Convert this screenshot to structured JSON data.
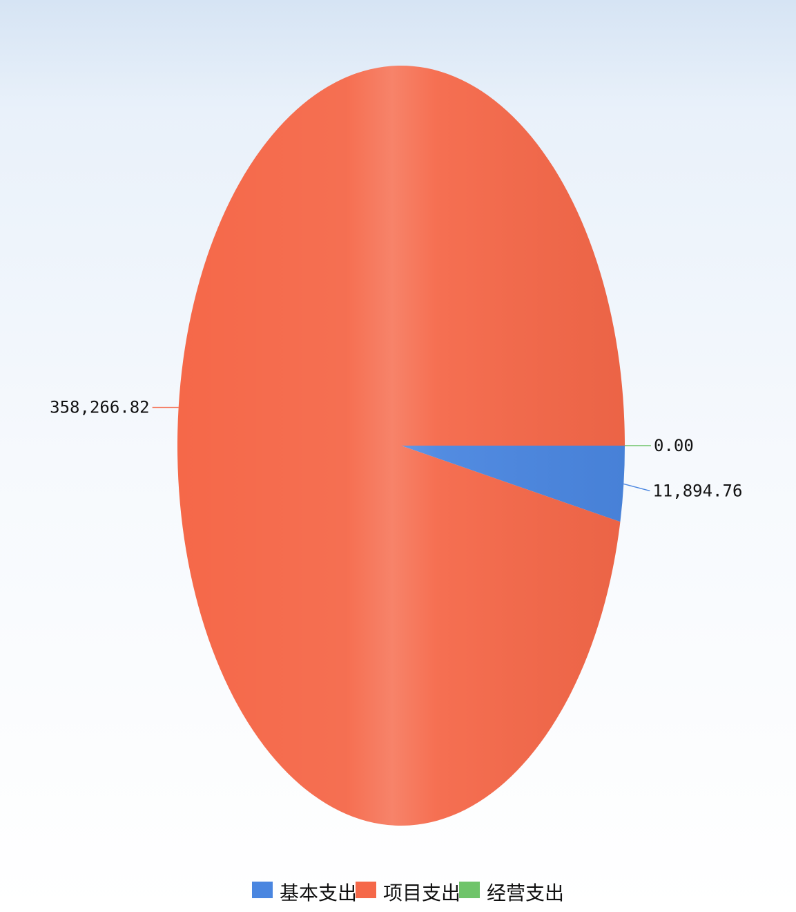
{
  "chart_data": {
    "type": "pie",
    "title": "",
    "slices": [
      {
        "name": "基本支出",
        "value": 11894.76,
        "label": "11,894.76",
        "color": "#4a86e0"
      },
      {
        "name": "项目支出",
        "value": 358266.82,
        "label": "358,266.82",
        "color": "#f56849"
      },
      {
        "name": "经营支出",
        "value": 0.0,
        "label": "0.00",
        "color": "#6fc46a"
      }
    ],
    "legend_position": "bottom"
  }
}
